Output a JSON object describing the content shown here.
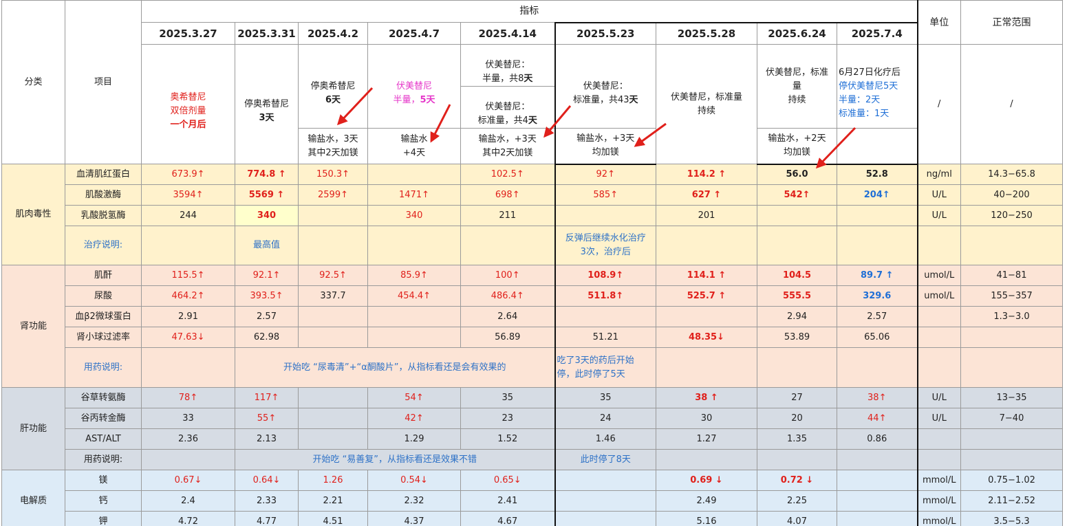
{
  "header": {
    "category": "分类",
    "item": "项目",
    "indicator": "指标",
    "unit": "单位",
    "range": "正常范围",
    "unit_slash": "/",
    "range_slash": "/",
    "dates": [
      "2025.3.27",
      "2025.3.31",
      "2025.4.2",
      "2025.4.7",
      "2025.4.14",
      "2025.5.23",
      "2025.5.28",
      "2025.6.24",
      "2025.7.4"
    ]
  },
  "meds": {
    "d1": {
      "l1": "奥希替尼",
      "l2": "双倍剂量",
      "l3": "一个月后"
    },
    "d2": {
      "l1": "停奥希替尼",
      "l2": "3天"
    },
    "d3": {
      "l1": "停奥希替尼",
      "l2": "6天"
    },
    "d4": {
      "l1": "伏美替尼",
      "l2a": "半量，",
      "l2b": "5天"
    },
    "d5a": {
      "l1": "伏美替尼：",
      "l2a": "半量，共8",
      "l2b": "天"
    },
    "d5b": {
      "l1": "伏美替尼：",
      "l2a": "标准量，共4",
      "l2b": "天"
    },
    "d6": {
      "l1": "伏美替尼：",
      "l2a": "标准量，共43",
      "l2b": "天"
    },
    "d7": {
      "text": "伏美替尼，标准量\n持续"
    },
    "d8": {
      "text": "伏美替尼，标准\n量\n持续"
    },
    "d9": {
      "l1": "6月27日化疗后",
      "l2": "停伏美替尼5天",
      "l3": "半量：2天",
      "l4": "标准量：1天"
    }
  },
  "saline": {
    "d3": "输盐水，3天\n其中2天加镁",
    "d4": "输盐水\n+4天",
    "d5": "输盐水，+3天\n其中2天加镁",
    "d6": "输盐水，+3天\n均加镁",
    "d8": "输盐水，+2天\n均加镁"
  },
  "sections": {
    "muscle": {
      "name": "肌肉毒性",
      "rows": [
        {
          "item": "血清肌红蛋白",
          "unit": "ng/ml",
          "range": "14.3−65.8",
          "vals": [
            "673.9↑",
            "774.8 ↑",
            "150.3↑",
            "",
            "102.5↑",
            "92↑",
            "114.2 ↑",
            "56.0",
            "52.8"
          ]
        },
        {
          "item": "肌酸激酶",
          "unit": "U/L",
          "range": "40−200",
          "vals": [
            "3594↑",
            "5569 ↑",
            "2599↑",
            "1471↑",
            "698↑",
            "585↑",
            "627 ↑",
            "542↑",
            "204↑"
          ]
        },
        {
          "item": "乳酸脱氢酶",
          "unit": "U/L",
          "range": "120−250",
          "vals": [
            "244",
            "340",
            "",
            "340",
            "211",
            "",
            "201",
            "",
            ""
          ]
        }
      ],
      "note_label": "治疗说明:",
      "note_d2": "最高值",
      "note_d6": "反弹后继续水化治疗\n3次，治疗后"
    },
    "kidney": {
      "name": "肾功能",
      "rows": [
        {
          "item": "肌酐",
          "unit": "umol/L",
          "range": "41−81",
          "vals": [
            "115.5↑",
            "92.1↑",
            "92.5↑",
            "85.9↑",
            "100↑",
            "108.9↑",
            "114.1 ↑",
            "104.5",
            "89.7 ↑"
          ]
        },
        {
          "item": "尿酸",
          "unit": "umol/L",
          "range": "155−357",
          "vals": [
            "464.2↑",
            "393.5↑",
            "337.7",
            "454.4↑",
            "486.4↑",
            "511.8↑",
            "525.7 ↑",
            "555.5",
            "329.6"
          ]
        },
        {
          "item": "血β2微球蛋白",
          "unit": "",
          "range": "1.3−3.0",
          "vals": [
            "2.91",
            "2.57",
            "",
            "",
            "2.64",
            "",
            "",
            "2.94",
            "2.57"
          ]
        },
        {
          "item": "肾小球过滤率",
          "unit": "",
          "range": "",
          "vals": [
            "47.63↓",
            "62.98",
            "",
            "",
            "56.89",
            "51.21",
            "48.35↓",
            "53.89",
            "65.06"
          ]
        }
      ],
      "note_label": "用药说明:",
      "note_main": "开始吃 “尿毒清”+“α酮酸片”，从指标看还是会有效果的",
      "note_d6": "吃了3天的药后开始\n停，此时停了5天"
    },
    "liver": {
      "name": "肝功能",
      "rows": [
        {
          "item": "谷草转氨酶",
          "unit": "U/L",
          "range": "13−35",
          "vals": [
            "78↑",
            "117↑",
            "",
            "54↑",
            "35",
            "35",
            "38 ↑",
            "27",
            "38↑"
          ]
        },
        {
          "item": "谷丙转金酶",
          "unit": "U/L",
          "range": "7−40",
          "vals": [
            "33",
            "55↑",
            "",
            "42↑",
            "23",
            "24",
            "30",
            "20",
            "44↑"
          ]
        },
        {
          "item": "AST/ALT",
          "unit": "",
          "range": "",
          "vals": [
            "2.36",
            "2.13",
            "",
            "1.29",
            "1.52",
            "1.46",
            "1.27",
            "1.35",
            "0.86"
          ]
        }
      ],
      "note_label": "用药说明:",
      "note_main": "开始吃 “易善复”，从指标看还是效果不错",
      "note_d6": "此时停了8天"
    },
    "electro": {
      "name": "电解质",
      "rows": [
        {
          "item": "镁",
          "unit": "mmol/L",
          "range": "0.75−1.02",
          "vals": [
            "0.67↓",
            "0.64↓",
            "1.26",
            "0.54↓",
            "0.65↓",
            "",
            "0.69 ↓",
            "0.72 ↓",
            ""
          ]
        },
        {
          "item": "钙",
          "unit": "mmol/L",
          "range": "2.11−2.52",
          "vals": [
            "2.4",
            "2.33",
            "2.21",
            "2.32",
            "2.41",
            "",
            "2.49",
            "2.25",
            ""
          ]
        },
        {
          "item": "钾",
          "unit": "mmol/L",
          "range": "3.5−5.3",
          "vals": [
            "4.72",
            "4.77",
            "4.51",
            "4.37",
            "4.67",
            "",
            "5.16",
            "4.07",
            ""
          ]
        }
      ]
    }
  },
  "colors": {
    "yellow": "#fff2cc",
    "pink": "#fce4d6",
    "gray": "#d6dce4",
    "blue": "#ddebf7",
    "red": "#e0201b",
    "note_blue": "#2e72c7",
    "arrow": "#e0201b"
  }
}
